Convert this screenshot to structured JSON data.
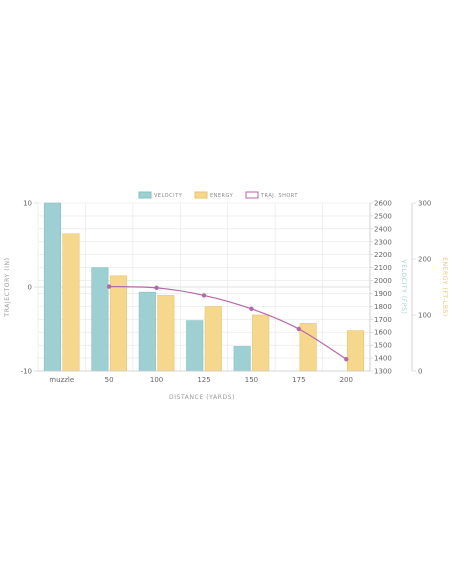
{
  "chart_data": {
    "type": "bar",
    "categories": [
      "muzzle",
      "50",
      "100",
      "125",
      "150",
      "175",
      "200"
    ],
    "series": [
      {
        "name": "VELOCITY",
        "kind": "bar",
        "axis": "velocity",
        "color": "#9ecfd3",
        "values": [
          2600,
          2100,
          1910,
          1690,
          1490,
          1300,
          1210
        ]
      },
      {
        "name": "ENERGY",
        "kind": "bar",
        "axis": "energy",
        "color": "#f5d78e",
        "values": [
          245,
          170,
          135,
          115,
          100,
          85,
          72
        ]
      },
      {
        "name": "TRAJ. SHORT",
        "kind": "line",
        "axis": "trajectory",
        "color": "#b566a8",
        "values": [
          null,
          0.05,
          -0.1,
          -1.0,
          -2.6,
          -5.0,
          -8.6
        ]
      }
    ],
    "axes": {
      "trajectory": {
        "label": "TRAJECTORY (IN)",
        "range": [
          -10,
          10
        ],
        "ticks": [
          "10",
          "0",
          "-10"
        ]
      },
      "velocity": {
        "label": "VELOCITY (FPS)",
        "range": [
          1300,
          2600
        ],
        "ticks": [
          "1300",
          "1400",
          "1500",
          "1600",
          "1700",
          "1800",
          "1900",
          "2000",
          "2100",
          "2200",
          "2300",
          "2400",
          "2500",
          "2600"
        ]
      },
      "energy": {
        "label": "ENERGY (FT-LBS)",
        "range": [
          0,
          300
        ],
        "ticks": [
          "0",
          "100",
          "200",
          "300"
        ]
      }
    },
    "xlabel": "DISTANCE (YARDS)",
    "grid": true,
    "legend_position": "top-center"
  },
  "colors": {
    "velocity": "#9ecfd3",
    "velocity_stroke": "#85c0c5",
    "energy": "#f5d78e",
    "energy_stroke": "#e8c56c",
    "trajectory": "#b566a8",
    "grid": "#e6e6e6",
    "axis_label_velocity": "#9ecfd3",
    "axis_label_energy": "#e8c56c"
  }
}
